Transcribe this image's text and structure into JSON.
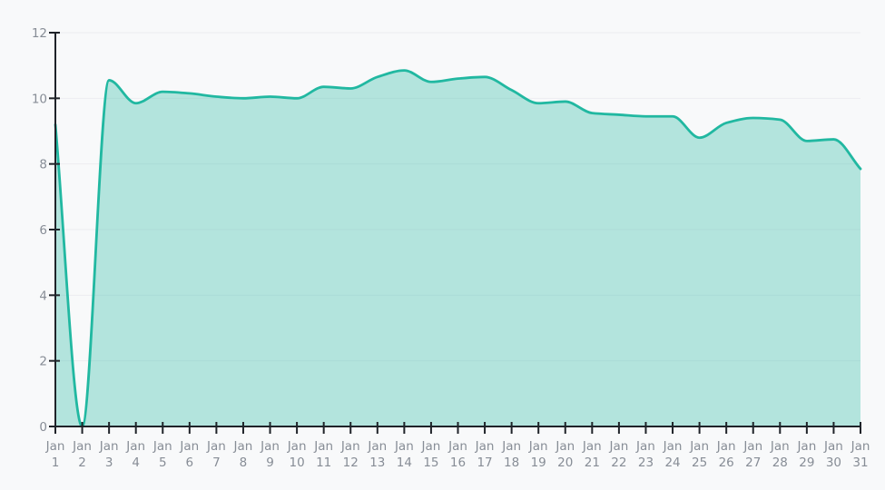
{
  "background_color": "#f8f9fa",
  "chart_data": {
    "type": "area",
    "title": "",
    "xlabel": "",
    "ylabel": "",
    "categories": [
      "Jan 1",
      "Jan 2",
      "Jan 3",
      "Jan 4",
      "Jan 5",
      "Jan 6",
      "Jan 7",
      "Jan 8",
      "Jan 9",
      "Jan 10",
      "Jan 11",
      "Jan 12",
      "Jan 13",
      "Jan 14",
      "Jan 15",
      "Jan 16",
      "Jan 17",
      "Jan 18",
      "Jan 19",
      "Jan 20",
      "Jan 21",
      "Jan 22",
      "Jan 23",
      "Jan 24",
      "Jan 25",
      "Jan 26",
      "Jan 27",
      "Jan 28",
      "Jan 29",
      "Jan 30",
      "Jan 31"
    ],
    "values": [
      9.2,
      0,
      10.55,
      9.85,
      10.2,
      10.15,
      10.05,
      10.0,
      10.05,
      10.0,
      10.35,
      10.3,
      10.65,
      10.85,
      10.5,
      10.6,
      10.65,
      10.25,
      9.85,
      9.9,
      9.55,
      9.5,
      9.45,
      9.45,
      8.8,
      9.25,
      9.4,
      9.35,
      8.7,
      8.75,
      7.85
    ],
    "ylim": [
      0,
      12
    ],
    "y_ticks": [
      0,
      2,
      4,
      6,
      8,
      10,
      12
    ],
    "grid": true,
    "legend_position": "none",
    "smoothing": "monotone",
    "colors": {
      "line": "#21b8a1",
      "fill": "rgba(33,184,161,0.32)",
      "axis": "#1f2329",
      "grid": "#ededf0",
      "tick_label": "#878d96",
      "background": "#f8f9fa"
    }
  }
}
